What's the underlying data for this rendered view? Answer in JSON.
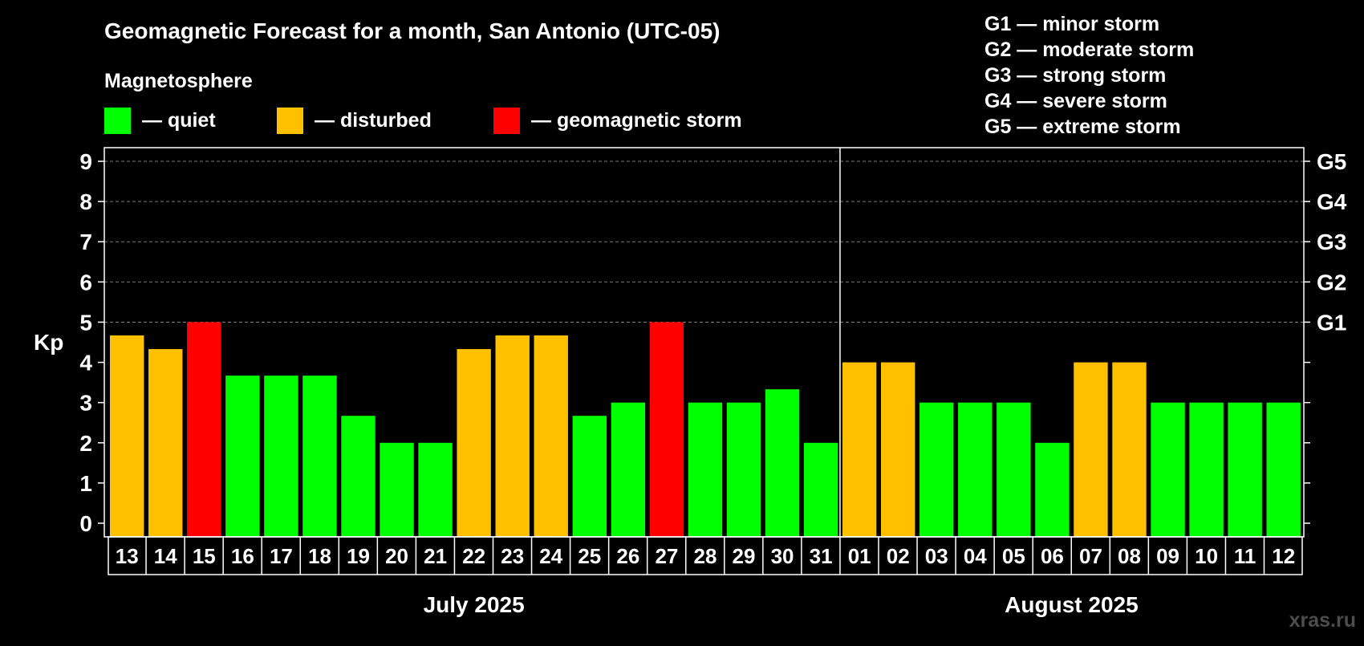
{
  "chart_data": {
    "type": "bar",
    "title": "Geomagnetic Forecast for a month, San Antonio (UTC-05)",
    "ylabel": "Kp",
    "ylim": [
      0,
      9
    ],
    "yticks": [
      "0",
      "1",
      "2",
      "3",
      "4",
      "5",
      "6",
      "7",
      "8",
      "9"
    ],
    "gridlines_at": [
      5,
      6,
      7,
      8,
      9
    ],
    "right_axis": [
      {
        "kp": 5,
        "label": "G1"
      },
      {
        "kp": 6,
        "label": "G2"
      },
      {
        "kp": 7,
        "label": "G3"
      },
      {
        "kp": 8,
        "label": "G4"
      },
      {
        "kp": 9,
        "label": "G5"
      }
    ],
    "storm_scale": [
      "G1 — minor storm",
      "G2 — moderate storm",
      "G3 — strong storm",
      "G4 — severe storm",
      "G5 — extreme storm"
    ],
    "legend": {
      "title": "Magnetosphere",
      "items": [
        {
          "status": "quiet",
          "label": "— quiet",
          "color": "#00ff00"
        },
        {
          "status": "disturbed",
          "label": "— disturbed",
          "color": "#ffc000"
        },
        {
          "status": "storm",
          "label": "— geomagnetic storm",
          "color": "#ff0000"
        }
      ]
    },
    "months": [
      {
        "label": "July 2025",
        "from": 0,
        "to": 18
      },
      {
        "label": "August 2025",
        "from": 19,
        "to": 30
      }
    ],
    "categories": [
      "13",
      "14",
      "15",
      "16",
      "17",
      "18",
      "19",
      "20",
      "21",
      "22",
      "23",
      "24",
      "25",
      "26",
      "27",
      "28",
      "29",
      "30",
      "31",
      "01",
      "02",
      "03",
      "04",
      "05",
      "06",
      "07",
      "08",
      "09",
      "10",
      "11",
      "12"
    ],
    "values": [
      4.67,
      4.33,
      5,
      3.67,
      3.67,
      3.67,
      2.67,
      2,
      2,
      4.33,
      4.67,
      4.67,
      2.67,
      3,
      5,
      3,
      3,
      3.33,
      2,
      4,
      4,
      3,
      3,
      3,
      2,
      4,
      4,
      3,
      3,
      3,
      3
    ],
    "status": [
      "disturbed",
      "disturbed",
      "storm",
      "quiet",
      "quiet",
      "quiet",
      "quiet",
      "quiet",
      "quiet",
      "disturbed",
      "disturbed",
      "disturbed",
      "quiet",
      "quiet",
      "storm",
      "quiet",
      "quiet",
      "quiet",
      "quiet",
      "disturbed",
      "disturbed",
      "quiet",
      "quiet",
      "quiet",
      "quiet",
      "disturbed",
      "disturbed",
      "quiet",
      "quiet",
      "quiet",
      "quiet"
    ]
  },
  "watermark": "xras.ru"
}
